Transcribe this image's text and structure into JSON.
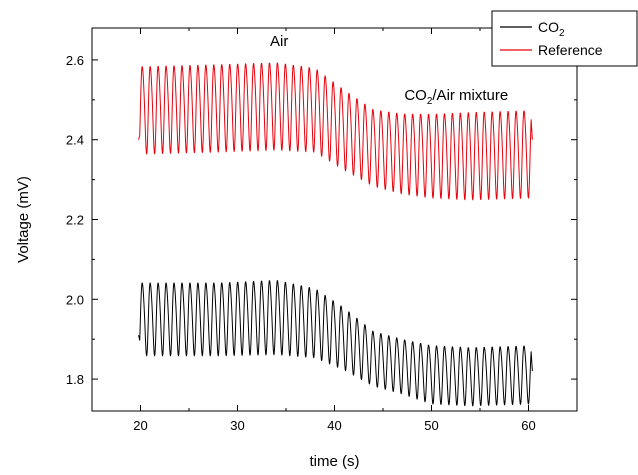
{
  "chart_data": {
    "type": "line",
    "xlabel": "time (s)",
    "ylabel": "Voltage (mV)",
    "xlim": [
      15,
      65
    ],
    "ylim": [
      1.72,
      2.68
    ],
    "x_ticks": [
      20,
      30,
      40,
      50,
      60
    ],
    "y_ticks": [
      1.8,
      2.0,
      2.2,
      2.4,
      2.6
    ],
    "x_minor_step": 5,
    "y_minor_step": 0.1,
    "grid": false,
    "legend_position": "top-right",
    "annotations": [
      {
        "text": "Air",
        "x": 34.3,
        "y": 2.635
      },
      {
        "text_parts": [
          "CO",
          "2",
          "/Air mixture"
        ],
        "x": 47.2,
        "y": 2.5
      }
    ],
    "series": [
      {
        "name_parts": [
          "CO",
          "2"
        ],
        "color": "#000000",
        "x_start": 19.8,
        "x_end": 60.4,
        "period": 0.82,
        "start_value": 1.91,
        "end_value": 1.82,
        "profile_x": [
          20,
          28,
          34,
          38,
          41,
          44,
          47,
          50,
          54,
          60.4
        ],
        "profile_center": [
          1.955,
          1.955,
          1.96,
          1.945,
          1.905,
          1.855,
          1.835,
          1.815,
          1.81,
          1.815
        ],
        "profile_amp": [
          0.1,
          0.1,
          0.102,
          0.095,
          0.085,
          0.075,
          0.075,
          0.08,
          0.08,
          0.08
        ]
      },
      {
        "name": "Reference",
        "color": "#e8000b",
        "x_start": 19.8,
        "x_end": 60.4,
        "period": 0.82,
        "start_value": 2.4,
        "end_value": 2.4,
        "profile_x": [
          20,
          28,
          34,
          38,
          41,
          44,
          47,
          50,
          54,
          60.4
        ],
        "profile_center": [
          2.48,
          2.485,
          2.49,
          2.48,
          2.43,
          2.385,
          2.37,
          2.365,
          2.365,
          2.37
        ],
        "profile_amp": [
          0.12,
          0.12,
          0.12,
          0.115,
          0.11,
          0.105,
          0.11,
          0.115,
          0.12,
          0.12
        ]
      }
    ]
  }
}
